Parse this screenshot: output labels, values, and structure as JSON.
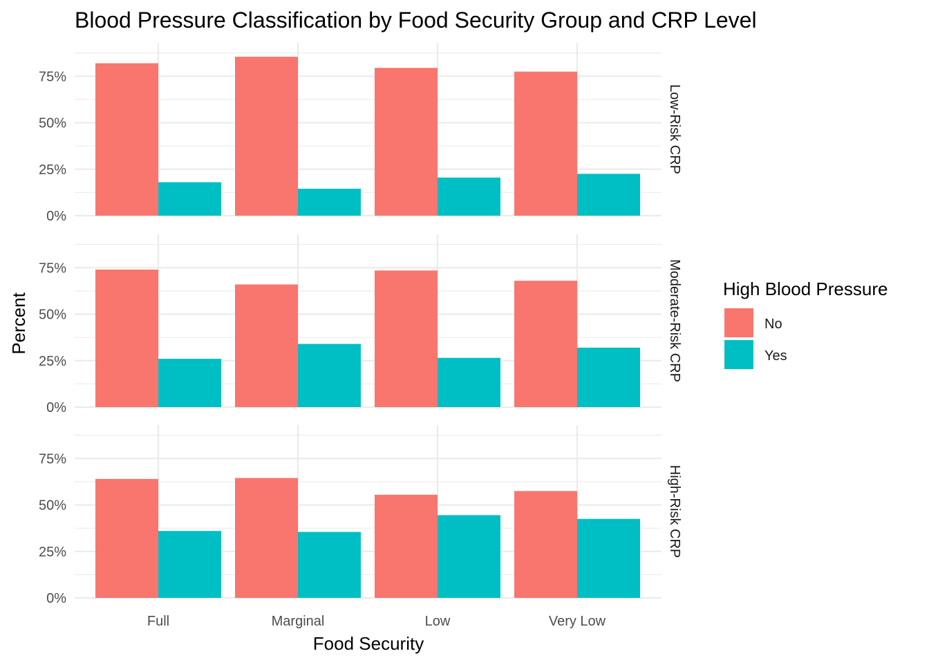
{
  "chart_data": {
    "type": "bar",
    "title": "Blood Pressure Classification by Food Security Group and CRP Level",
    "xlabel": "Food Security",
    "ylabel": "Percent",
    "categories": [
      "Full",
      "Marginal",
      "Low",
      "Very Low"
    ],
    "ylim": [
      0,
      0.9
    ],
    "yticks": [
      0,
      0.25,
      0.5,
      0.75
    ],
    "ytick_labels": [
      "0%",
      "25%",
      "50%",
      "75%"
    ],
    "grid": true,
    "legend": {
      "title": "High Blood Pressure",
      "position": "right",
      "entries": [
        {
          "name": "No",
          "color": "#F8766D"
        },
        {
          "name": "Yes",
          "color": "#00BFC4"
        }
      ]
    },
    "facets": [
      {
        "label": "Low-Risk CRP",
        "series": [
          {
            "name": "No",
            "values": [
              0.82,
              0.855,
              0.795,
              0.775
            ]
          },
          {
            "name": "Yes",
            "values": [
              0.18,
              0.145,
              0.205,
              0.225
            ]
          }
        ]
      },
      {
        "label": "Moderate-Risk CRP",
        "series": [
          {
            "name": "No",
            "values": [
              0.74,
              0.66,
              0.735,
              0.68
            ]
          },
          {
            "name": "Yes",
            "values": [
              0.26,
              0.34,
              0.265,
              0.32
            ]
          }
        ]
      },
      {
        "label": "High-Risk CRP",
        "series": [
          {
            "name": "No",
            "values": [
              0.64,
              0.645,
              0.555,
              0.575
            ]
          },
          {
            "name": "Yes",
            "values": [
              0.36,
              0.355,
              0.445,
              0.425
            ]
          }
        ]
      }
    ]
  }
}
